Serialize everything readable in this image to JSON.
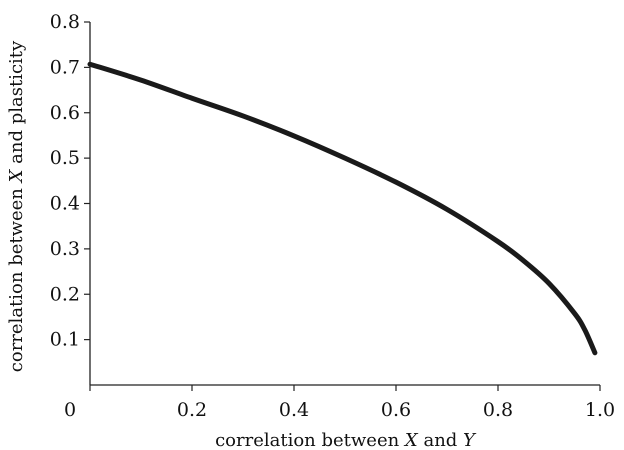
{
  "chart_data": {
    "type": "line",
    "title": "",
    "xlabel": {
      "prefix": "correlation between ",
      "var1": "X",
      "middle": " and ",
      "var2": "Y"
    },
    "ylabel": {
      "prefix": "correlation between ",
      "var1": "X",
      "suffix": " and plasticity"
    },
    "xlim": [
      0,
      1.0
    ],
    "ylim": [
      0,
      0.8
    ],
    "x_ticks": [
      {
        "value": 0,
        "label": "0"
      },
      {
        "value": 0.2,
        "label": "0.2"
      },
      {
        "value": 0.4,
        "label": "0.4"
      },
      {
        "value": 0.6,
        "label": "0.6"
      },
      {
        "value": 0.8,
        "label": "0.8"
      },
      {
        "value": 1.0,
        "label": "1.0"
      }
    ],
    "y_ticks": [
      {
        "value": 0.1,
        "label": "0.1"
      },
      {
        "value": 0.2,
        "label": "0.2"
      },
      {
        "value": 0.3,
        "label": "0.3"
      },
      {
        "value": 0.4,
        "label": "0.4"
      },
      {
        "value": 0.5,
        "label": "0.5"
      },
      {
        "value": 0.6,
        "label": "0.6"
      },
      {
        "value": 0.7,
        "label": "0.7"
      },
      {
        "value": 0.8,
        "label": "0.8"
      }
    ],
    "grid": false,
    "series": [
      {
        "color": "#1a1a1a",
        "x": [
          0.0,
          0.1,
          0.2,
          0.3,
          0.4,
          0.5,
          0.6,
          0.7,
          0.8,
          0.85,
          0.9,
          0.95,
          0.97,
          0.99
        ],
        "y": [
          0.707,
          0.672,
          0.632,
          0.593,
          0.549,
          0.5,
          0.447,
          0.387,
          0.316,
          0.274,
          0.224,
          0.158,
          0.122,
          0.071
        ]
      }
    ]
  }
}
